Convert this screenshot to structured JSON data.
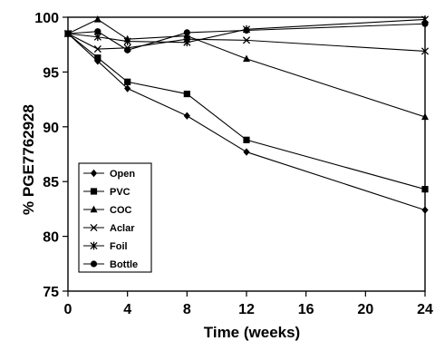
{
  "chart_data": {
    "type": "line",
    "xlabel": "Time (weeks)",
    "ylabel": "% PGE7762928",
    "xlim": [
      0,
      24
    ],
    "ylim": [
      75,
      100
    ],
    "x_ticks": [
      "0",
      "4",
      "8",
      "12",
      "16",
      "20",
      "24"
    ],
    "y_ticks": [
      "75",
      "80",
      "85",
      "90",
      "95",
      "100"
    ],
    "grid": false,
    "legend_position": "lower-left",
    "series": [
      {
        "name": "Open",
        "marker": "diamond",
        "x": [
          0,
          2,
          4,
          8,
          12,
          24
        ],
        "values": [
          98.5,
          96.0,
          93.5,
          91.0,
          87.7,
          82.4
        ]
      },
      {
        "name": "PVC",
        "marker": "square",
        "x": [
          0,
          2,
          4,
          8,
          12,
          24
        ],
        "values": [
          98.5,
          96.3,
          94.1,
          93.0,
          88.8,
          84.3
        ]
      },
      {
        "name": "COC",
        "marker": "triangle",
        "x": [
          0,
          2,
          4,
          8,
          12,
          24
        ],
        "values": [
          98.5,
          99.8,
          98.0,
          98.3,
          96.2,
          90.9
        ]
      },
      {
        "name": "Aclar",
        "marker": "x",
        "x": [
          0,
          2,
          4,
          8,
          12,
          24
        ],
        "values": [
          98.5,
          97.1,
          97.2,
          98.0,
          97.9,
          96.9
        ]
      },
      {
        "name": "Foil",
        "marker": "asterisk",
        "x": [
          0,
          2,
          4,
          8,
          12,
          24
        ],
        "values": [
          98.5,
          98.2,
          97.8,
          97.7,
          98.9,
          99.8
        ]
      },
      {
        "name": "Bottle",
        "marker": "circle",
        "x": [
          0,
          2,
          4,
          8,
          12,
          24
        ],
        "values": [
          98.5,
          98.7,
          97.0,
          98.6,
          98.8,
          99.4
        ]
      }
    ]
  }
}
